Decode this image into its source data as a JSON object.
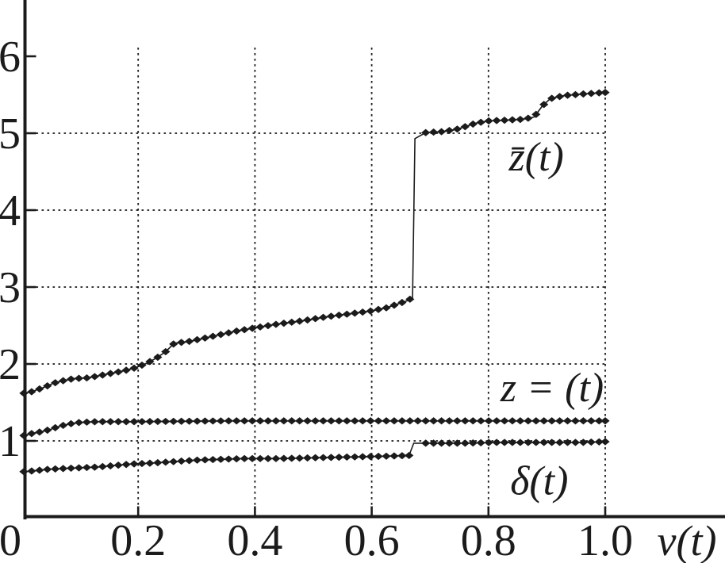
{
  "figure": {
    "background": "#ffffff",
    "ink_color": "#1b1b1b"
  },
  "chart_data": {
    "type": "line",
    "title": "",
    "xlabel": "v(t)",
    "ylabel": "",
    "xlim": [
      0,
      1.2
    ],
    "ylim": [
      0,
      6.7
    ],
    "grid": "dotted",
    "legend_position": "inline-labels-on-plot",
    "marker": "filled-diamond",
    "marker_dv": 0.0135,
    "x_ticks": [
      {
        "value": 0,
        "label": "0"
      },
      {
        "value": 0.2,
        "label": "0.2"
      },
      {
        "value": 0.4,
        "label": "0.4"
      },
      {
        "value": 0.6,
        "label": "0.6"
      },
      {
        "value": 0.8,
        "label": "0.8"
      },
      {
        "value": 1.0,
        "label": "1.0"
      }
    ],
    "y_ticks": [
      {
        "value": 1,
        "label": "1",
        "gridline": true
      },
      {
        "value": 2,
        "label": "2",
        "gridline": true
      },
      {
        "value": 3,
        "label": "3",
        "gridline": true
      },
      {
        "value": 4,
        "label": "4",
        "gridline": true
      },
      {
        "value": 5,
        "label": "5",
        "gridline": true
      },
      {
        "value": 6,
        "label": "6",
        "gridline": false
      }
    ],
    "series": [
      {
        "id": "zbar",
        "label": "z̄(t)",
        "label_anchor": {
          "v": 0.882,
          "value": 4.7
        },
        "points": [
          [
            0.004,
            1.62
          ],
          [
            0.018,
            1.64
          ],
          [
            0.04,
            1.7
          ],
          [
            0.055,
            1.75
          ],
          [
            0.07,
            1.78
          ],
          [
            0.09,
            1.81
          ],
          [
            0.115,
            1.82
          ],
          [
            0.135,
            1.85
          ],
          [
            0.155,
            1.88
          ],
          [
            0.175,
            1.91
          ],
          [
            0.195,
            1.95
          ],
          [
            0.215,
            2.01
          ],
          [
            0.232,
            2.08
          ],
          [
            0.247,
            2.16
          ],
          [
            0.262,
            2.27
          ],
          [
            0.285,
            2.29
          ],
          [
            0.31,
            2.33
          ],
          [
            0.34,
            2.38
          ],
          [
            0.37,
            2.43
          ],
          [
            0.4,
            2.47
          ],
          [
            0.44,
            2.52
          ],
          [
            0.48,
            2.56
          ],
          [
            0.52,
            2.61
          ],
          [
            0.56,
            2.65
          ],
          [
            0.6,
            2.69
          ],
          [
            0.625,
            2.73
          ],
          [
            0.645,
            2.78
          ],
          [
            0.66,
            2.82
          ],
          [
            0.67,
            2.86
          ],
          [
            0.674,
            4.93
          ],
          [
            0.693,
            5.01
          ],
          [
            0.72,
            5.02
          ],
          [
            0.745,
            5.05
          ],
          [
            0.762,
            5.09
          ],
          [
            0.778,
            5.13
          ],
          [
            0.8,
            5.16
          ],
          [
            0.83,
            5.17
          ],
          [
            0.858,
            5.18
          ],
          [
            0.878,
            5.21
          ],
          [
            0.893,
            5.36
          ],
          [
            0.906,
            5.45
          ],
          [
            0.93,
            5.49
          ],
          [
            0.962,
            5.51
          ],
          [
            1.0,
            5.53
          ]
        ]
      },
      {
        "id": "z",
        "label": "z = (t)",
        "label_anchor": {
          "v": 0.909,
          "value": 1.7
        },
        "points": [
          [
            0.004,
            1.07
          ],
          [
            0.02,
            1.1
          ],
          [
            0.035,
            1.12
          ],
          [
            0.05,
            1.15
          ],
          [
            0.065,
            1.19
          ],
          [
            0.082,
            1.22
          ],
          [
            0.1,
            1.24
          ],
          [
            0.13,
            1.25
          ],
          [
            0.2,
            1.25
          ],
          [
            0.35,
            1.26
          ],
          [
            0.55,
            1.26
          ],
          [
            0.75,
            1.26
          ],
          [
            1.0,
            1.26
          ]
        ]
      },
      {
        "id": "delta",
        "label": "δ(t)",
        "label_anchor": {
          "v": 0.887,
          "value": 0.49
        },
        "points": [
          [
            0.004,
            0.6
          ],
          [
            0.02,
            0.61
          ],
          [
            0.045,
            0.63
          ],
          [
            0.07,
            0.64
          ],
          [
            0.1,
            0.65
          ],
          [
            0.13,
            0.66
          ],
          [
            0.16,
            0.68
          ],
          [
            0.19,
            0.7
          ],
          [
            0.22,
            0.71
          ],
          [
            0.26,
            0.73
          ],
          [
            0.3,
            0.75
          ],
          [
            0.34,
            0.76
          ],
          [
            0.38,
            0.77
          ],
          [
            0.44,
            0.77
          ],
          [
            0.5,
            0.78
          ],
          [
            0.56,
            0.79
          ],
          [
            0.62,
            0.8
          ],
          [
            0.664,
            0.81
          ],
          [
            0.672,
            0.97
          ],
          [
            0.71,
            0.97
          ],
          [
            0.76,
            0.97
          ],
          [
            0.81,
            0.98
          ],
          [
            0.86,
            0.98
          ],
          [
            0.91,
            0.98
          ],
          [
            0.96,
            0.98
          ],
          [
            1.0,
            0.99
          ]
        ]
      }
    ]
  }
}
